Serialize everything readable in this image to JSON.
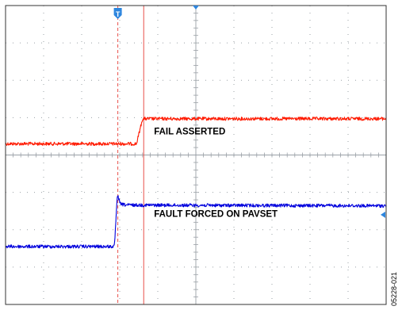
{
  "chart_data": {
    "type": "line",
    "title": "",
    "xlabel": "",
    "ylabel": "",
    "grid": true,
    "divisions": {
      "x": 10,
      "y": 8
    },
    "xlim": [
      0,
      10
    ],
    "ylim": [
      0,
      8
    ],
    "trigger_marker": {
      "label": "T",
      "x_div": 2.95
    },
    "trigger_level_marker": {
      "y_div": 2.4
    },
    "cursors": [
      {
        "name": "trigger",
        "x_div": 2.95,
        "style": "dashed",
        "color": "#e8504a"
      },
      {
        "name": "measure",
        "x_div": 3.63,
        "style": "solid",
        "color": "#e8504a"
      }
    ],
    "series": [
      {
        "name": "FAIL ASSERTED",
        "color": "#ff1a00",
        "x": [
          0,
          3.44,
          3.6,
          10
        ],
        "y": [
          4.3,
          4.3,
          4.97,
          4.97
        ]
      },
      {
        "name": "FAULT FORCED ON PAVSET",
        "color": "#0000dd",
        "x": [
          0,
          2.86,
          2.94,
          3.02,
          3.2,
          10
        ],
        "y": [
          1.55,
          1.55,
          2.95,
          2.68,
          2.66,
          2.64
        ]
      }
    ],
    "annotations": [
      {
        "text": "FAIL ASSERTED",
        "x_div": 3.9,
        "y_div": 4.55
      },
      {
        "text": "FAULT FORCED ON PAVSET",
        "x_div": 3.9,
        "y_div": 2.35
      }
    ],
    "figure_id": "05228-021",
    "colors": {
      "grid": "#9aa0a6",
      "frame": "#333333",
      "marker": "#2e86de"
    }
  }
}
